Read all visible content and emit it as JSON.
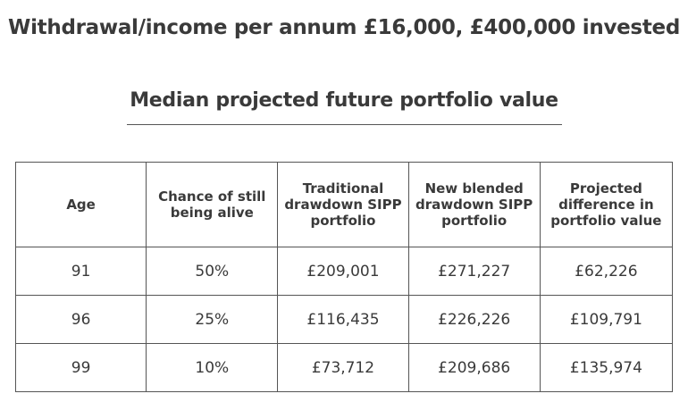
{
  "heading": "Withdrawal/income per annum £16,000, £400,000 invested",
  "subheading": "Median projected future portfolio value",
  "table": {
    "headers": [
      "Age",
      "Chance of still being alive",
      "Traditional drawdown SIPP portfolio",
      "New blended drawdown SIPP portfolio",
      "Projected difference in portfolio value"
    ],
    "rows": [
      [
        "91",
        "50%",
        "£209,001",
        "£271,227",
        "£62,226"
      ],
      [
        "96",
        "25%",
        "£116,435",
        "£226,226",
        "£109,791"
      ],
      [
        "99",
        "10%",
        "£73,712",
        "£209,686",
        "£135,974"
      ]
    ]
  }
}
